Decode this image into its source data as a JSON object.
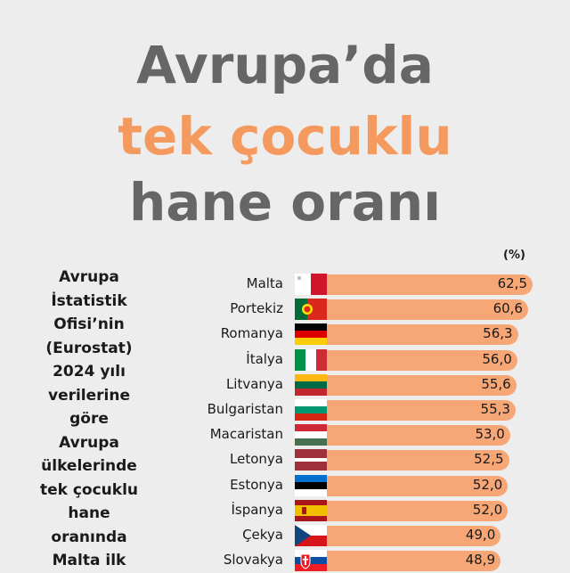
{
  "title": {
    "line1": "Avrupa’da",
    "line2": "tek çocuklu",
    "line3": "hane oranı"
  },
  "unit_label": "(%)",
  "side_note": {
    "lines": [
      "Avrupa",
      "İstatistik",
      "Ofisi’nin",
      "(Eurostat)",
      "2024 yılı",
      "verilerine",
      "göre",
      "Avrupa",
      "ülkelerinde",
      "tek çocuklu",
      "hane",
      "oranında",
      "Malta ilk"
    ]
  },
  "colors": {
    "bar": "#f7a676",
    "title_gray": "#666666",
    "title_accent": "#f49a5e",
    "background": "#ededed"
  },
  "chart_data": {
    "type": "bar",
    "orientation": "horizontal",
    "categories": [
      "Malta",
      "Portekiz",
      "Romanya",
      "İtalya",
      "Litvanya",
      "Bulgaristan",
      "Macaristan",
      "Letonya",
      "Estonya",
      "İspanya",
      "Çekya",
      "Slovakya"
    ],
    "labels": [
      "62,5",
      "60,6",
      "56,3",
      "56,0",
      "55,6",
      "55,3",
      "53,0",
      "52,5",
      "52,0",
      "52,0",
      "49,0",
      "48,9"
    ],
    "values": [
      62.5,
      60.6,
      56.3,
      56.0,
      55.6,
      55.3,
      53.0,
      52.5,
      52.0,
      52.0,
      49.0,
      48.9
    ],
    "flags": [
      "malta-flag",
      "portugal-flag",
      "germany-flag",
      "italy-flag",
      "lithuania-flag",
      "bulgaria-flag",
      "hungary-flag",
      "latvia-flag",
      "estonia-flag",
      "spain-flag",
      "czechia-flag",
      "slovakia-flag"
    ],
    "xlabel": "",
    "ylabel": "",
    "grid": false
  }
}
